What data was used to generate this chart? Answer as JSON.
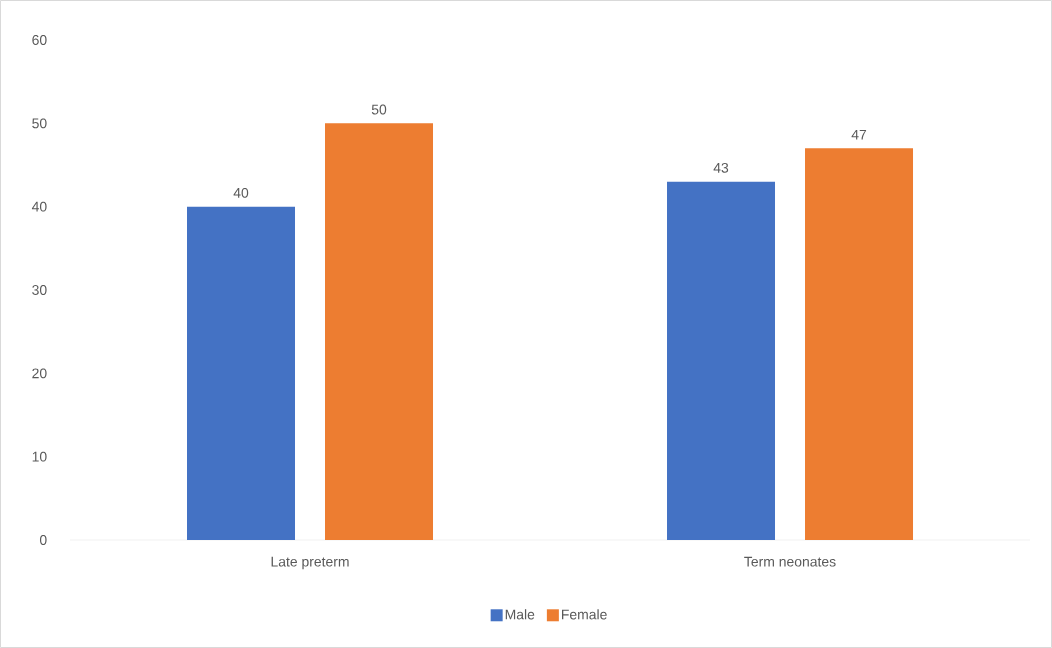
{
  "chart_data": {
    "type": "bar",
    "categories": [
      "Late preterm",
      "Term neonates"
    ],
    "series": [
      {
        "name": "Male",
        "color": "#4472c4",
        "values": [
          40,
          43
        ]
      },
      {
        "name": "Female",
        "color": "#ed7d31",
        "values": [
          50,
          47
        ]
      }
    ],
    "ylim": [
      0,
      60
    ],
    "yticks": [
      0,
      10,
      20,
      30,
      40,
      50,
      60
    ],
    "grid": false,
    "legend": "bottom",
    "data_labels": true
  }
}
